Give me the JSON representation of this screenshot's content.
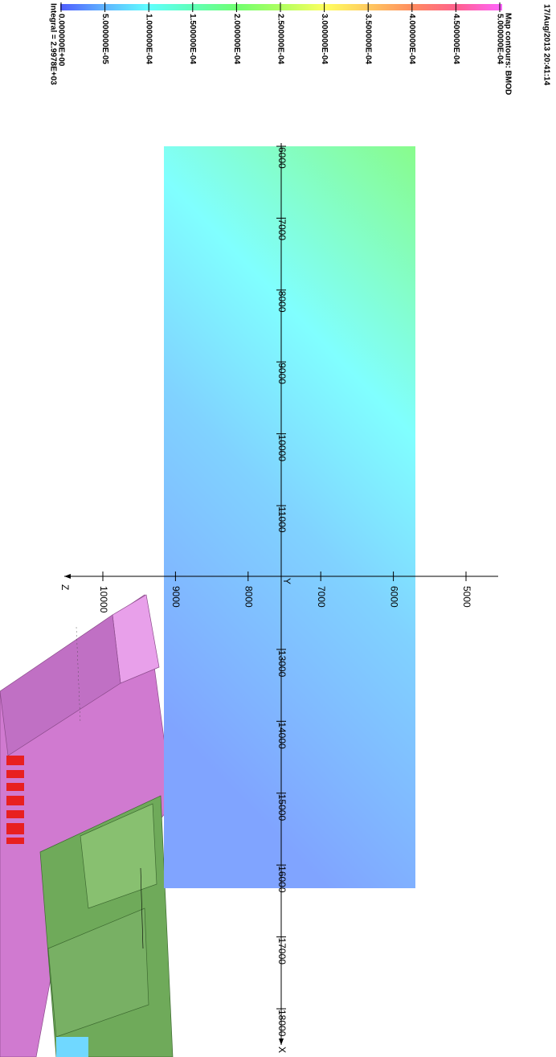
{
  "header": {
    "timestamp": "17/Aug/2013 20:41:14"
  },
  "legend": {
    "title": "Map contours: BMOD",
    "labels": [
      "5.000000E-04",
      "4.500000E-04",
      "4.000000E-04",
      "3.500000E-04",
      "3.000000E-04",
      "2.500000E-04",
      "2.000000E-04",
      "1.500000E-04",
      "1.000000E-04",
      "5.000000E-05",
      "0.000000E+00"
    ],
    "integral": "Integral = 2.9978E+03"
  },
  "axes": {
    "x": {
      "label": "X",
      "ticks": [
        6000,
        7000,
        8000,
        9000,
        10000,
        11000,
        13000,
        14000,
        15000,
        16000,
        17000,
        18000
      ]
    },
    "y": {
      "label": "Y"
    },
    "z": {
      "label": "Z",
      "ticks": [
        5000,
        6000,
        7000,
        8000,
        9000,
        10000
      ]
    }
  }
}
